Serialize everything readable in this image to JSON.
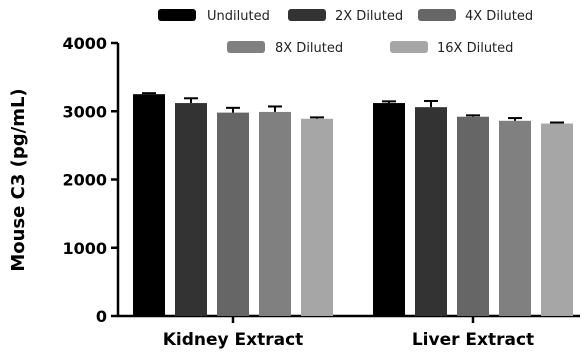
{
  "chart_data": {
    "type": "bar",
    "title": "",
    "xlabel": "",
    "ylabel": "Mouse C3 (pg/mL)",
    "ylim": [
      0,
      4000
    ],
    "yticks": [
      0,
      1000,
      2000,
      3000,
      4000
    ],
    "categories": [
      "Kidney Extract",
      "Liver Extract"
    ],
    "legend_position": "top",
    "series": [
      {
        "name": "Undiluted",
        "color": "#000000",
        "values": [
          3250,
          3120
        ],
        "errors": [
          15,
          25
        ]
      },
      {
        "name": "2X Diluted",
        "color": "#333333",
        "values": [
          3120,
          3060
        ],
        "errors": [
          70,
          90
        ]
      },
      {
        "name": "4X Diluted",
        "color": "#666666",
        "values": [
          2980,
          2920
        ],
        "errors": [
          70,
          20
        ]
      },
      {
        "name": "8X Diluted",
        "color": "#808080",
        "values": [
          2990,
          2860
        ],
        "errors": [
          80,
          40
        ]
      },
      {
        "name": "16X Diluted",
        "color": "#a6a6a6",
        "values": [
          2890,
          2820
        ],
        "errors": [
          20,
          15
        ]
      }
    ]
  }
}
